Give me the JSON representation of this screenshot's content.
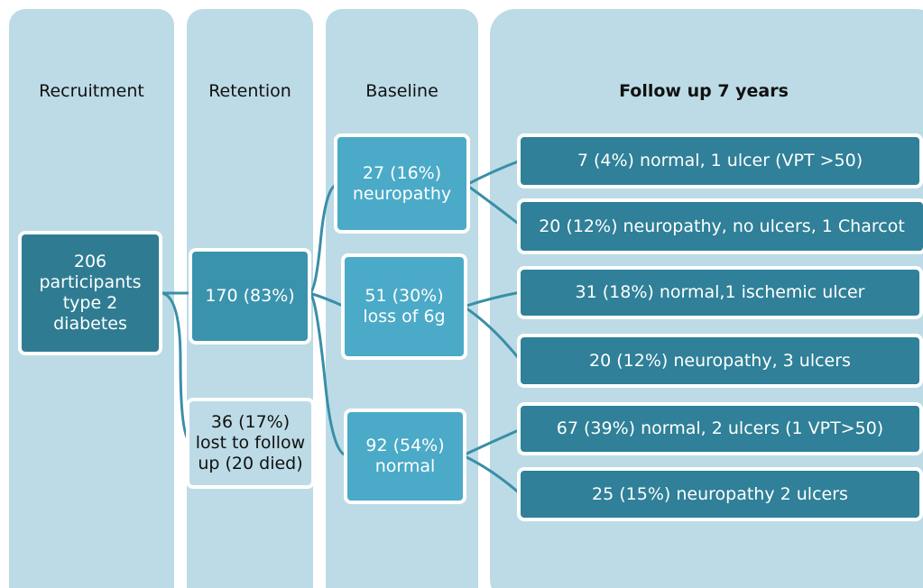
{
  "columns": [
    "Recruitment",
    "Retention",
    "Baseline",
    "Follow up 7 years"
  ],
  "recruitment": "206 participants type 2 diabetes",
  "retention": [
    "170 (83%)",
    "36 (17%) lost to follow up (20 died)"
  ],
  "baseline": [
    "27 (16%) neuropathy",
    "51 (30%) loss of 6g",
    "92 (54%) normal"
  ],
  "follow_up": [
    "7 (4%) normal, 1 ulcer (VPT >50)",
    "20 (12%) neuropathy, no ulcers, 1 Charcot",
    "31 (18%) normal,1 ischemic ulcer",
    "20 (12%) neuropathy, 3 ulcers",
    "67 (39%) normal, 2 ulcers (1 VPT>50)",
    "25 (15%) neuropathy 2 ulcers"
  ]
}
